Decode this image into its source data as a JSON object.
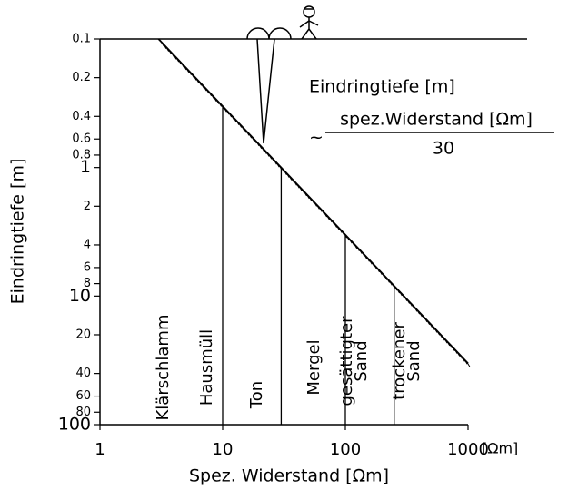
{
  "chart_data": {
    "type": "line",
    "x_label": "Spez. Widerstand [Ωm]",
    "x_unit": "[Ωm]",
    "y_label": "Eindringtiefe [m]",
    "formula": {
      "lhs": "Eindringtiefe [m]",
      "approx": "~",
      "numerator": "spez.Widerstand [Ωm]",
      "denominator": "30"
    },
    "log_x": true,
    "log_y": true,
    "y_inverted": true,
    "xlim": [
      1,
      1000
    ],
    "ylim": [
      0.1,
      100
    ],
    "xticks": [
      1,
      10,
      100,
      1000
    ],
    "yticks": [
      0.1,
      0.2,
      0.4,
      0.6,
      0.8,
      1,
      2,
      4,
      6,
      8,
      10,
      20,
      40,
      60,
      80,
      100
    ],
    "series": [
      {
        "x": [
          3,
          1000
        ],
        "values": [
          0.1,
          33.3
        ],
        "color": "#000000"
      }
    ],
    "boundaries": [
      10,
      30,
      100,
      250
    ],
    "materials": [
      [
        "Klärschlamm"
      ],
      [
        "Hausmüll"
      ],
      [
        "Ton"
      ],
      [
        "Mergel"
      ],
      [
        "gesättigter",
        "Sand"
      ],
      [
        "trockener",
        "Sand"
      ]
    ]
  }
}
